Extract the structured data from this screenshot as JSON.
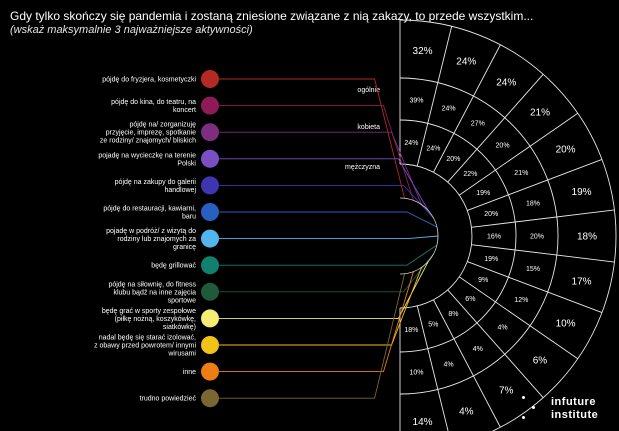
{
  "title": "Gdy tylko skończy się pandemia i zostaną zniesione związane z nią zakazy, to przede wszystkim...",
  "subtitle": "(wskaż maksymalnie 3 najważniejsze aktywności)",
  "logo": {
    "line1": "infuture",
    "line2": "institute"
  },
  "chart_data": {
    "type": "radial-bar-table",
    "series": [
      {
        "name": "ogólnie",
        "values": [
          "32%",
          "24%",
          "24%",
          "21%",
          "20%",
          "19%",
          "18%",
          "17%",
          "10%",
          "6%",
          "7%",
          "4%",
          "14%"
        ]
      },
      {
        "name": "kobieta",
        "values": [
          "39%",
          "24%",
          "27%",
          "20%",
          "21%",
          "18%",
          "20%",
          "15%",
          "12%",
          "4%",
          "4%",
          "4%",
          "10%"
        ]
      },
      {
        "name": "mężczyzna",
        "values": [
          "24%",
          "24%",
          "20%",
          "22%",
          "19%",
          "20%",
          "16%",
          "19%",
          "9%",
          "6%",
          "8%",
          "5%",
          "18%"
        ]
      }
    ],
    "categories": [
      {
        "label": "pójdę do fryzjera, kosmetyczki",
        "color": "#b22a22"
      },
      {
        "label": "pójdę do kina, do teatru, na koncert",
        "color": "#8e1a58"
      },
      {
        "label": "pójdę na/ zorganizuję przyjęcie, imprezę, spotkanie ze rodziny/ znajomych/ bliskich",
        "color": "#7d2e80"
      },
      {
        "label": "pojadę na wycieczkę na terenie Polski",
        "color": "#7a4fc4"
      },
      {
        "label": "pójdę na zakupy do galerii handlowej",
        "color": "#3f35b0"
      },
      {
        "label": "pójdę do restauracji, kawiarni, baru",
        "color": "#2760c0"
      },
      {
        "label": "pojadę w podróż/ z wizytą do rodziny lub znajomych za granicę",
        "color": "#52b5ee"
      },
      {
        "label": "będę grillować",
        "color": "#12806e"
      },
      {
        "label": "pójdę na siłownię, do fitness klubu bądź na inne zajęcia sportowe",
        "color": "#1f5a3a"
      },
      {
        "label": "będę grać w sporty zespołowe (piłkę nożną, koszykówkę, siatkówkę)",
        "color": "#f4ec74"
      },
      {
        "label": "nadal będę się starać izolować, z obawy przed powrotem/ innymi wirusami",
        "color": "#f2c218"
      },
      {
        "label": "inne",
        "color": "#ef7d14"
      },
      {
        "label": "trudno powiedzieć",
        "color": "#7a6630"
      }
    ]
  }
}
